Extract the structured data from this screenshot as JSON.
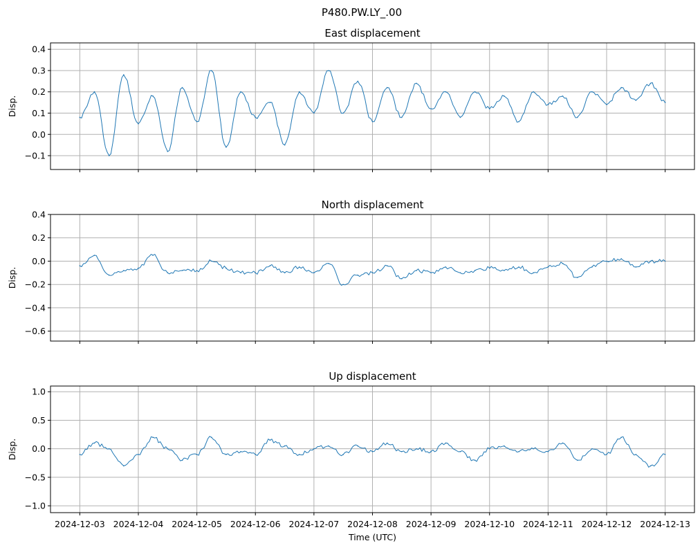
{
  "figure": {
    "title": "P480.PW.LY_.00",
    "series_color": "#1f77b4"
  },
  "chart_data": [
    {
      "type": "line",
      "title": "East displacement",
      "xlabel": "",
      "ylabel": "Disp.",
      "x_range": [
        "2024-12-03",
        "2024-12-13"
      ],
      "ylim": [
        -0.165,
        0.43
      ],
      "yticks": [
        -0.1,
        0.0,
        0.1,
        0.2,
        0.3,
        0.4
      ],
      "ytick_labels": [
        "−0.1",
        "0.0",
        "0.1",
        "0.2",
        "0.3",
        "0.4"
      ],
      "xticks": [
        "2024-12-03",
        "2024-12-04",
        "2024-12-05",
        "2024-12-06",
        "2024-12-07",
        "2024-12-08",
        "2024-12-09",
        "2024-12-10",
        "2024-12-11",
        "2024-12-12",
        "2024-12-13"
      ],
      "xtick_labels": [],
      "grid": true,
      "series": [
        {
          "x": [
            "2024-12-03 00:00",
            "2024-12-03 06:00",
            "2024-12-03 12:00",
            "2024-12-03 18:00",
            "2024-12-04 00:00",
            "2024-12-04 06:00",
            "2024-12-04 12:00",
            "2024-12-04 18:00",
            "2024-12-05 00:00",
            "2024-12-05 06:00",
            "2024-12-05 12:00",
            "2024-12-05 18:00",
            "2024-12-06 00:00",
            "2024-12-06 06:00",
            "2024-12-06 12:00",
            "2024-12-06 18:00",
            "2024-12-07 00:00",
            "2024-12-07 06:00",
            "2024-12-07 12:00",
            "2024-12-07 18:00",
            "2024-12-08 00:00",
            "2024-12-08 06:00",
            "2024-12-08 12:00",
            "2024-12-08 18:00",
            "2024-12-09 00:00",
            "2024-12-09 06:00",
            "2024-12-09 12:00",
            "2024-12-09 18:00",
            "2024-12-10 00:00",
            "2024-12-10 06:00",
            "2024-12-10 12:00",
            "2024-12-10 18:00",
            "2024-12-11 00:00",
            "2024-12-11 06:00",
            "2024-12-11 12:00",
            "2024-12-11 18:00",
            "2024-12-12 00:00",
            "2024-12-12 06:00",
            "2024-12-12 12:00",
            "2024-12-12 18:00",
            "2024-12-13 00:00"
          ],
          "values": [
            0.08,
            0.2,
            -0.1,
            0.28,
            0.05,
            0.18,
            -0.08,
            0.22,
            0.06,
            0.3,
            -0.06,
            0.2,
            0.08,
            0.15,
            -0.05,
            0.2,
            0.1,
            0.3,
            0.1,
            0.25,
            0.06,
            0.22,
            0.08,
            0.24,
            0.12,
            0.2,
            0.08,
            0.2,
            0.12,
            0.18,
            0.06,
            0.2,
            0.14,
            0.18,
            0.08,
            0.2,
            0.14,
            0.22,
            0.16,
            0.24,
            0.15
          ]
        }
      ]
    },
    {
      "type": "line",
      "title": "North displacement",
      "xlabel": "",
      "ylabel": "Disp.",
      "x_range": [
        "2024-12-03",
        "2024-12-13"
      ],
      "ylim": [
        -0.685,
        0.4
      ],
      "yticks": [
        -0.6,
        -0.4,
        -0.2,
        0.0,
        0.2,
        0.4
      ],
      "ytick_labels": [
        "−0.6",
        "−0.4",
        "−0.2",
        "0.0",
        "0.2",
        "0.4"
      ],
      "xticks": [
        "2024-12-03",
        "2024-12-04",
        "2024-12-05",
        "2024-12-06",
        "2024-12-07",
        "2024-12-08",
        "2024-12-09",
        "2024-12-10",
        "2024-12-11",
        "2024-12-12",
        "2024-12-13"
      ],
      "xtick_labels": [],
      "grid": true,
      "series": [
        {
          "x": [
            "2024-12-03 00:00",
            "2024-12-03 06:00",
            "2024-12-03 12:00",
            "2024-12-03 18:00",
            "2024-12-04 00:00",
            "2024-12-04 06:00",
            "2024-12-04 12:00",
            "2024-12-04 18:00",
            "2024-12-05 00:00",
            "2024-12-05 06:00",
            "2024-12-05 12:00",
            "2024-12-05 18:00",
            "2024-12-06 00:00",
            "2024-12-06 06:00",
            "2024-12-06 12:00",
            "2024-12-06 18:00",
            "2024-12-07 00:00",
            "2024-12-07 06:00",
            "2024-12-07 12:00",
            "2024-12-07 18:00",
            "2024-12-08 00:00",
            "2024-12-08 06:00",
            "2024-12-08 12:00",
            "2024-12-08 18:00",
            "2024-12-09 00:00",
            "2024-12-09 06:00",
            "2024-12-09 12:00",
            "2024-12-09 18:00",
            "2024-12-10 00:00",
            "2024-12-10 06:00",
            "2024-12-10 12:00",
            "2024-12-10 18:00",
            "2024-12-11 00:00",
            "2024-12-11 06:00",
            "2024-12-11 12:00",
            "2024-12-11 18:00",
            "2024-12-12 00:00",
            "2024-12-12 06:00",
            "2024-12-12 12:00",
            "2024-12-12 18:00",
            "2024-12-13 00:00"
          ],
          "values": [
            -0.04,
            0.05,
            -0.12,
            -0.08,
            -0.06,
            0.05,
            -0.1,
            -0.08,
            -0.08,
            0.0,
            -0.06,
            -0.1,
            -0.1,
            -0.04,
            -0.1,
            -0.05,
            -0.1,
            -0.02,
            -0.2,
            -0.12,
            -0.1,
            -0.04,
            -0.15,
            -0.08,
            -0.1,
            -0.05,
            -0.1,
            -0.08,
            -0.06,
            -0.08,
            -0.05,
            -0.1,
            -0.05,
            -0.02,
            -0.14,
            -0.05,
            0.0,
            0.02,
            -0.05,
            0.0,
            0.0
          ]
        }
      ]
    },
    {
      "type": "line",
      "title": "Up displacement",
      "xlabel": "Time (UTC)",
      "ylabel": "Disp.",
      "x_range": [
        "2024-12-03",
        "2024-12-13"
      ],
      "ylim": [
        -1.12,
        1.1
      ],
      "yticks": [
        -1.0,
        -0.5,
        0.0,
        0.5,
        1.0
      ],
      "ytick_labels": [
        "−1.0",
        "−0.5",
        "0.0",
        "0.5",
        "1.0"
      ],
      "xticks": [
        "2024-12-03",
        "2024-12-04",
        "2024-12-05",
        "2024-12-06",
        "2024-12-07",
        "2024-12-08",
        "2024-12-09",
        "2024-12-10",
        "2024-12-11",
        "2024-12-12",
        "2024-12-13"
      ],
      "xtick_labels": [
        "2024-12-03",
        "2024-12-04",
        "2024-12-05",
        "2024-12-06",
        "2024-12-07",
        "2024-12-08",
        "2024-12-09",
        "2024-12-10",
        "2024-12-11",
        "2024-12-12",
        "2024-12-13"
      ],
      "grid": true,
      "series": [
        {
          "x": [
            "2024-12-03 00:00",
            "2024-12-03 06:00",
            "2024-12-03 12:00",
            "2024-12-03 18:00",
            "2024-12-04 00:00",
            "2024-12-04 06:00",
            "2024-12-04 12:00",
            "2024-12-04 18:00",
            "2024-12-05 00:00",
            "2024-12-05 06:00",
            "2024-12-05 12:00",
            "2024-12-05 18:00",
            "2024-12-06 00:00",
            "2024-12-06 06:00",
            "2024-12-06 12:00",
            "2024-12-06 18:00",
            "2024-12-07 00:00",
            "2024-12-07 06:00",
            "2024-12-07 12:00",
            "2024-12-07 18:00",
            "2024-12-08 00:00",
            "2024-12-08 06:00",
            "2024-12-08 12:00",
            "2024-12-08 18:00",
            "2024-12-09 00:00",
            "2024-12-09 06:00",
            "2024-12-09 12:00",
            "2024-12-09 18:00",
            "2024-12-10 00:00",
            "2024-12-10 06:00",
            "2024-12-10 12:00",
            "2024-12-10 18:00",
            "2024-12-11 00:00",
            "2024-12-11 06:00",
            "2024-12-11 12:00",
            "2024-12-11 18:00",
            "2024-12-12 00:00",
            "2024-12-12 06:00",
            "2024-12-12 12:00",
            "2024-12-12 18:00",
            "2024-12-13 00:00"
          ],
          "values": [
            -0.1,
            0.1,
            0.0,
            -0.3,
            -0.1,
            0.2,
            0.0,
            -0.2,
            -0.1,
            0.2,
            -0.1,
            -0.05,
            -0.1,
            0.15,
            0.05,
            -0.1,
            0.0,
            0.05,
            -0.1,
            0.05,
            -0.05,
            0.1,
            -0.05,
            0.0,
            -0.05,
            0.1,
            -0.05,
            -0.2,
            0.0,
            0.05,
            -0.05,
            0.0,
            -0.05,
            0.1,
            -0.2,
            0.0,
            -0.1,
            0.2,
            -0.1,
            -0.3,
            -0.1
          ]
        }
      ]
    }
  ]
}
